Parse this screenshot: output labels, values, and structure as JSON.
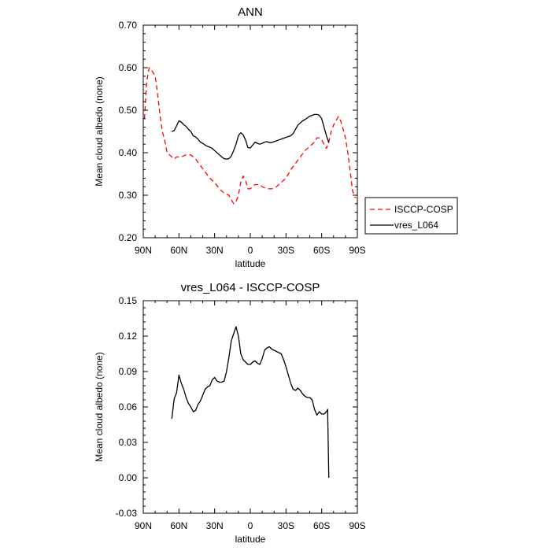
{
  "chart_data": [
    {
      "type": "line",
      "title": "ANN",
      "xlabel": "latitude",
      "ylabel": "Mean cloud albedo (none)",
      "xlim": [
        90,
        -90
      ],
      "ylim": [
        0.2,
        0.7
      ],
      "xticks": [
        {
          "value": 90,
          "label": "90N"
        },
        {
          "value": 60,
          "label": "60N"
        },
        {
          "value": 30,
          "label": "30N"
        },
        {
          "value": 0,
          "label": "0"
        },
        {
          "value": -30,
          "label": "30S"
        },
        {
          "value": -60,
          "label": "60S"
        },
        {
          "value": -90,
          "label": "90S"
        }
      ],
      "yticks": [
        {
          "value": 0.2,
          "label": "0.20"
        },
        {
          "value": 0.3,
          "label": "0.30"
        },
        {
          "value": 0.4,
          "label": "0.40"
        },
        {
          "value": 0.5,
          "label": "0.50"
        },
        {
          "value": 0.6,
          "label": "0.60"
        },
        {
          "value": 0.7,
          "label": "0.70"
        }
      ],
      "grid": false,
      "legend_position": "right",
      "series": [
        {
          "name": "ISCCP-COSP",
          "color": "#ff0000",
          "dash": "dashed",
          "points": [
            [
              89,
              0.48
            ],
            [
              87,
              0.57
            ],
            [
              85,
              0.6
            ],
            [
              82,
              0.59
            ],
            [
              80,
              0.58
            ],
            [
              78,
              0.54
            ],
            [
              76,
              0.49
            ],
            [
              74,
              0.45
            ],
            [
              72,
              0.43
            ],
            [
              70,
              0.4
            ],
            [
              68,
              0.395
            ],
            [
              66,
              0.39
            ],
            [
              64,
              0.385
            ],
            [
              62,
              0.39
            ],
            [
              58,
              0.39
            ],
            [
              54,
              0.395
            ],
            [
              50,
              0.395
            ],
            [
              46,
              0.385
            ],
            [
              42,
              0.37
            ],
            [
              38,
              0.355
            ],
            [
              34,
              0.34
            ],
            [
              30,
              0.33
            ],
            [
              26,
              0.315
            ],
            [
              22,
              0.305
            ],
            [
              18,
              0.3
            ],
            [
              16,
              0.29
            ],
            [
              14,
              0.28
            ],
            [
              12,
              0.285
            ],
            [
              10,
              0.3
            ],
            [
              8,
              0.33
            ],
            [
              6,
              0.345
            ],
            [
              4,
              0.335
            ],
            [
              2,
              0.315
            ],
            [
              0,
              0.315
            ],
            [
              -2,
              0.32
            ],
            [
              -4,
              0.325
            ],
            [
              -8,
              0.325
            ],
            [
              -10,
              0.32
            ],
            [
              -14,
              0.315
            ],
            [
              -18,
              0.315
            ],
            [
              -22,
              0.32
            ],
            [
              -26,
              0.33
            ],
            [
              -30,
              0.34
            ],
            [
              -34,
              0.36
            ],
            [
              -38,
              0.375
            ],
            [
              -42,
              0.39
            ],
            [
              -46,
              0.405
            ],
            [
              -50,
              0.415
            ],
            [
              -54,
              0.425
            ],
            [
              -56,
              0.435
            ],
            [
              -58,
              0.435
            ],
            [
              -60,
              0.43
            ],
            [
              -62,
              0.42
            ],
            [
              -64,
              0.41
            ],
            [
              -66,
              0.425
            ],
            [
              -68,
              0.45
            ],
            [
              -70,
              0.465
            ],
            [
              -72,
              0.475
            ],
            [
              -74,
              0.485
            ],
            [
              -76,
              0.475
            ],
            [
              -78,
              0.455
            ],
            [
              -80,
              0.435
            ],
            [
              -82,
              0.4
            ],
            [
              -84,
              0.355
            ],
            [
              -86,
              0.31
            ],
            [
              -88,
              0.295
            ],
            [
              -89,
              0.295
            ]
          ]
        },
        {
          "name": "vres_L064",
          "color": "#000000",
          "dash": "solid",
          "points": [
            [
              66,
              0.45
            ],
            [
              64,
              0.452
            ],
            [
              62,
              0.463
            ],
            [
              60,
              0.475
            ],
            [
              58,
              0.472
            ],
            [
              56,
              0.466
            ],
            [
              54,
              0.462
            ],
            [
              52,
              0.455
            ],
            [
              50,
              0.45
            ],
            [
              48,
              0.44
            ],
            [
              46,
              0.437
            ],
            [
              44,
              0.432
            ],
            [
              42,
              0.425
            ],
            [
              40,
              0.422
            ],
            [
              38,
              0.418
            ],
            [
              36,
              0.415
            ],
            [
              34,
              0.413
            ],
            [
              32,
              0.41
            ],
            [
              30,
              0.405
            ],
            [
              28,
              0.4
            ],
            [
              26,
              0.395
            ],
            [
              24,
              0.39
            ],
            [
              22,
              0.386
            ],
            [
              20,
              0.385
            ],
            [
              18,
              0.386
            ],
            [
              16,
              0.392
            ],
            [
              14,
              0.405
            ],
            [
              12,
              0.42
            ],
            [
              10,
              0.44
            ],
            [
              8,
              0.447
            ],
            [
              6,
              0.442
            ],
            [
              4,
              0.43
            ],
            [
              2,
              0.412
            ],
            [
              0,
              0.411
            ],
            [
              -2,
              0.418
            ],
            [
              -4,
              0.425
            ],
            [
              -6,
              0.422
            ],
            [
              -8,
              0.42
            ],
            [
              -10,
              0.422
            ],
            [
              -12,
              0.425
            ],
            [
              -14,
              0.426
            ],
            [
              -16,
              0.424
            ],
            [
              -18,
              0.424
            ],
            [
              -20,
              0.426
            ],
            [
              -22,
              0.428
            ],
            [
              -24,
              0.43
            ],
            [
              -26,
              0.432
            ],
            [
              -28,
              0.434
            ],
            [
              -30,
              0.436
            ],
            [
              -32,
              0.438
            ],
            [
              -34,
              0.44
            ],
            [
              -36,
              0.445
            ],
            [
              -38,
              0.455
            ],
            [
              -40,
              0.465
            ],
            [
              -42,
              0.47
            ],
            [
              -44,
              0.475
            ],
            [
              -46,
              0.478
            ],
            [
              -48,
              0.482
            ],
            [
              -50,
              0.486
            ],
            [
              -52,
              0.488
            ],
            [
              -54,
              0.49
            ],
            [
              -56,
              0.49
            ],
            [
              -58,
              0.488
            ],
            [
              -60,
              0.48
            ],
            [
              -62,
              0.46
            ],
            [
              -64,
              0.44
            ],
            [
              -66,
              0.423
            ]
          ]
        }
      ]
    },
    {
      "type": "line",
      "title": "vres_L064 - ISCCP-COSP",
      "xlabel": "latitude",
      "ylabel": "Mean cloud albedo (none)",
      "xlim": [
        90,
        -90
      ],
      "ylim": [
        -0.03,
        0.15
      ],
      "xticks": [
        {
          "value": 90,
          "label": "90N"
        },
        {
          "value": 60,
          "label": "60N"
        },
        {
          "value": 30,
          "label": "30N"
        },
        {
          "value": 0,
          "label": "0"
        },
        {
          "value": -30,
          "label": "30S"
        },
        {
          "value": -60,
          "label": "60S"
        },
        {
          "value": -90,
          "label": "90S"
        }
      ],
      "yticks": [
        {
          "value": -0.03,
          "label": "-0.03"
        },
        {
          "value": 0.0,
          "label": "0.00"
        },
        {
          "value": 0.03,
          "label": "0.03"
        },
        {
          "value": 0.06,
          "label": "0.06"
        },
        {
          "value": 0.09,
          "label": "0.09"
        },
        {
          "value": 0.12,
          "label": "0.12"
        },
        {
          "value": 0.15,
          "label": "0.15"
        }
      ],
      "grid": false,
      "series": [
        {
          "name": "vres_L064 - ISCCP-COSP",
          "color": "#000000",
          "dash": "solid",
          "points": [
            [
              66,
              0.05
            ],
            [
              64,
              0.067
            ],
            [
              62,
              0.072
            ],
            [
              60,
              0.087
            ],
            [
              58,
              0.08
            ],
            [
              56,
              0.075
            ],
            [
              54,
              0.068
            ],
            [
              52,
              0.063
            ],
            [
              50,
              0.06
            ],
            [
              48,
              0.056
            ],
            [
              46,
              0.057
            ],
            [
              44,
              0.062
            ],
            [
              42,
              0.065
            ],
            [
              40,
              0.07
            ],
            [
              38,
              0.075
            ],
            [
              36,
              0.077
            ],
            [
              34,
              0.078
            ],
            [
              32,
              0.083
            ],
            [
              30,
              0.085
            ],
            [
              28,
              0.082
            ],
            [
              26,
              0.081
            ],
            [
              24,
              0.081
            ],
            [
              22,
              0.082
            ],
            [
              20,
              0.09
            ],
            [
              18,
              0.102
            ],
            [
              16,
              0.116
            ],
            [
              14,
              0.122
            ],
            [
              12,
              0.128
            ],
            [
              10,
              0.12
            ],
            [
              8,
              0.105
            ],
            [
              6,
              0.1
            ],
            [
              4,
              0.098
            ],
            [
              2,
              0.096
            ],
            [
              0,
              0.096
            ],
            [
              -2,
              0.098
            ],
            [
              -4,
              0.099
            ],
            [
              -6,
              0.097
            ],
            [
              -8,
              0.096
            ],
            [
              -10,
              0.101
            ],
            [
              -12,
              0.108
            ],
            [
              -14,
              0.11
            ],
            [
              -16,
              0.111
            ],
            [
              -18,
              0.109
            ],
            [
              -20,
              0.108
            ],
            [
              -22,
              0.107
            ],
            [
              -24,
              0.106
            ],
            [
              -26,
              0.105
            ],
            [
              -28,
              0.1
            ],
            [
              -30,
              0.094
            ],
            [
              -32,
              0.087
            ],
            [
              -34,
              0.08
            ],
            [
              -36,
              0.075
            ],
            [
              -38,
              0.074
            ],
            [
              -40,
              0.076
            ],
            [
              -42,
              0.074
            ],
            [
              -44,
              0.071
            ],
            [
              -46,
              0.069
            ],
            [
              -48,
              0.068
            ],
            [
              -50,
              0.068
            ],
            [
              -52,
              0.066
            ],
            [
              -54,
              0.058
            ],
            [
              -56,
              0.053
            ],
            [
              -58,
              0.056
            ],
            [
              -60,
              0.054
            ],
            [
              -62,
              0.054
            ],
            [
              -64,
              0.056
            ],
            [
              -65,
              0.058
            ],
            [
              -66,
              0.0
            ]
          ]
        }
      ]
    }
  ]
}
